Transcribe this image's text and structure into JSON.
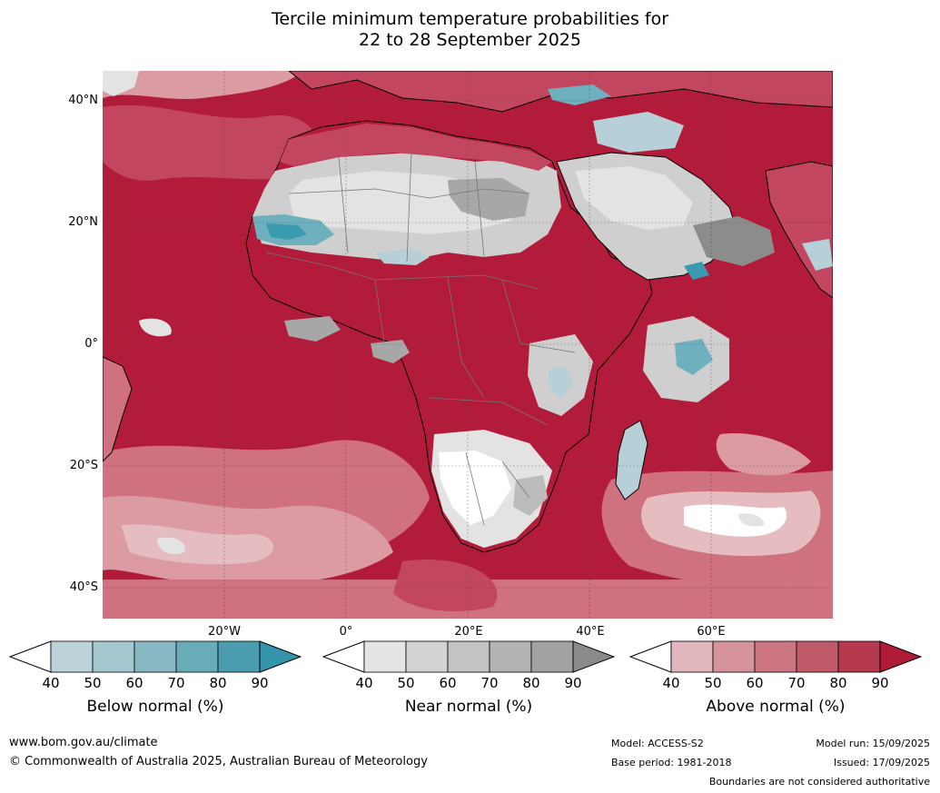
{
  "title": {
    "line1": "Tercile minimum temperature probabilities for",
    "line2": "22 to 28 September 2025"
  },
  "map": {
    "lat_labels": [
      "40°N",
      "20°N",
      "0°",
      "20°S",
      "40°S"
    ],
    "lon_labels": [
      "20°W",
      "0°",
      "20°E",
      "40°E",
      "60°E"
    ],
    "colors": {
      "ocean_base": "#b31b3b",
      "above_90": "#b31b3b",
      "above_80": "#c34660",
      "above_70": "#d0717f",
      "above_60": "#dc9aa2",
      "above_50": "#e5bcc0",
      "neutral": "#ffffff",
      "near_50": "#e3e3e3",
      "near_60": "#cfcfcf",
      "near_70": "#bcbcbc",
      "near_80": "#a7a7a7",
      "near_90": "#8c8c8c",
      "below_50": "#b7d0d8",
      "below_70": "#6fb0bf",
      "below_90": "#3a9ab0"
    }
  },
  "colorbars": [
    {
      "title": "Below normal (%)",
      "ticks": [
        "40",
        "50",
        "60",
        "70",
        "80",
        "90"
      ],
      "colors": [
        "#bcd3da",
        "#a5c7cf",
        "#88b8c3",
        "#6aabb8",
        "#4a9cae",
        "#3394aa"
      ]
    },
    {
      "title": "Near normal (%)",
      "ticks": [
        "40",
        "50",
        "60",
        "70",
        "80",
        "90"
      ],
      "colors": [
        "#e4e4e4",
        "#d3d3d3",
        "#c3c3c3",
        "#b3b3b3",
        "#a2a2a2",
        "#8a8a8a"
      ]
    },
    {
      "title": "Above normal (%)",
      "ticks": [
        "40",
        "50",
        "60",
        "70",
        "80",
        "90"
      ],
      "colors": [
        "#e2b6bd",
        "#d6939d",
        "#ca7580",
        "#bf5a68",
        "#b63a4e",
        "#b01c38"
      ]
    }
  ],
  "footer": {
    "website": "www.bom.gov.au/climate",
    "copyright": "© Commonwealth of Australia 2025, Australian Bureau of Meteorology",
    "model": "Model: ACCESS-S2",
    "base_period": "Base period: 1981-2018",
    "model_run": "Model run: 15/09/2025",
    "issued": "Issued: 17/09/2025",
    "disclaimer": "Boundaries are not considered authoritative"
  }
}
